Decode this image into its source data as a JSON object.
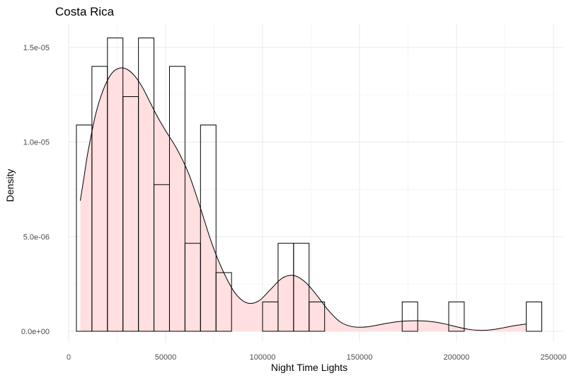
{
  "chart_data": {
    "type": "histogram",
    "title": "Costa Rica",
    "xlabel": "Night Time Lights",
    "ylabel": "Density",
    "xlim": [
      -5000,
      250000
    ],
    "ylim": [
      0,
      1.55e-05
    ],
    "x_ticks": [
      0,
      50000,
      100000,
      150000,
      200000,
      250000
    ],
    "x_tick_labels": [
      "0",
      "50000",
      "100000",
      "150000",
      "200000",
      "250000"
    ],
    "y_ticks": [
      0,
      5e-06,
      1e-05,
      1.5e-05
    ],
    "y_tick_labels": [
      "0.0e+00",
      "5.0e-06",
      "1.0e-05",
      "1.5e-05"
    ],
    "grid": true,
    "histogram": {
      "bin_edges": [
        4000,
        12000,
        20000,
        28000,
        36000,
        44000,
        52000,
        60000,
        68000,
        76000,
        84000,
        92000,
        100000,
        108000,
        116000,
        124000,
        132000,
        140000,
        148000,
        156000,
        164000,
        172000,
        180000,
        188000,
        196000,
        204000,
        212000,
        220000,
        228000,
        236000,
        244000
      ],
      "density": [
        1.09e-05,
        1.4e-05,
        1.55e-05,
        1.24e-05,
        1.55e-05,
        7.75e-06,
        1.4e-05,
        4.65e-06,
        1.09e-05,
        3.1e-06,
        0,
        0,
        1.55e-06,
        4.65e-06,
        4.65e-06,
        1.55e-06,
        0,
        0,
        0,
        0,
        0,
        1.55e-06,
        0,
        0,
        1.55e-06,
        0,
        0,
        0,
        0,
        1.55e-06
      ],
      "fill": "none",
      "stroke": "#000000"
    },
    "density_curve": {
      "x": [
        6000,
        8000,
        10000,
        14000,
        18000,
        22000,
        26000,
        30000,
        34000,
        38000,
        42000,
        46000,
        50000,
        56000,
        62000,
        68000,
        74000,
        80000,
        86000,
        92000,
        98000,
        104000,
        110000,
        116000,
        122000,
        128000,
        134000,
        140000,
        146000,
        152000,
        158000,
        164000,
        170000,
        176000,
        182000,
        188000,
        194000,
        200000,
        206000,
        212000,
        218000,
        224000,
        230000,
        236000
      ],
      "y": [
        6.9e-06,
        8.2e-06,
        9.5e-06,
        1.15e-05,
        1.28e-05,
        1.36e-05,
        1.39e-05,
        1.385e-05,
        1.35e-05,
        1.29e-05,
        1.21e-05,
        1.13e-05,
        1.06e-05,
        9.6e-06,
        8.3e-06,
        6.5e-06,
        4.6e-06,
        3.1e-06,
        2e-06,
        1.5e-06,
        1.6e-06,
        2.2e-06,
        2.8e-06,
        2.95e-06,
        2.6e-06,
        1.9e-06,
        1.1e-06,
        5e-07,
        2.5e-07,
        2.2e-07,
        3e-07,
        4.2e-07,
        5.1e-07,
        5.5e-07,
        5.5e-07,
        5e-07,
        3.9e-07,
        2.4e-07,
        1.1e-07,
        5e-08,
        8e-08,
        1.8e-07,
        3e-07,
        3.9e-07
      ],
      "fill": "#ffdfe0",
      "stroke": "#000000"
    }
  }
}
